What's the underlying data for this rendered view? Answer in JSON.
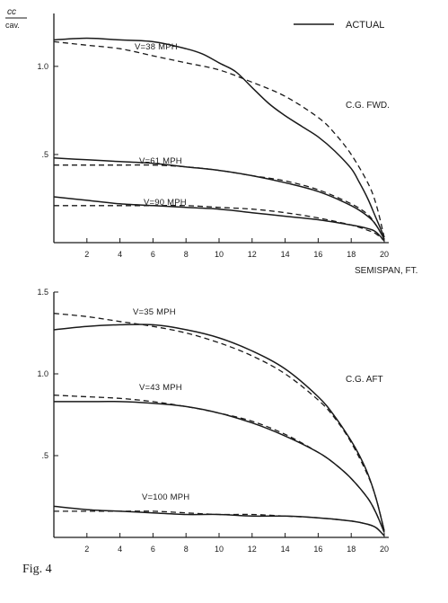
{
  "figure_label": "Fig. 4",
  "legend": {
    "label": "ACTUAL",
    "line_style": "solid",
    "placement": "top-right"
  },
  "colors": {
    "ink": "#1a1a1a",
    "background": "#ffffff"
  },
  "chart_data": [
    {
      "type": "line",
      "title": "C.G. FWD.",
      "ylabel": "cc/cav.",
      "xlabel": "SEMISPAN, FT.",
      "xlim": [
        0,
        20
      ],
      "ylim": [
        0,
        1.3
      ],
      "x_ticks": [
        "2",
        "4",
        "6",
        "8",
        "10",
        "12",
        "14",
        "16",
        "18",
        "20"
      ],
      "y_ticks": [
        ".5",
        "1.0"
      ],
      "grid": false,
      "series": [
        {
          "name": "V=38 MPH",
          "style": "solid",
          "x": [
            0,
            2,
            4,
            6,
            8,
            9,
            10,
            11,
            12,
            13,
            14,
            15,
            16,
            17,
            18,
            18.5,
            19,
            19.5,
            20
          ],
          "y": [
            1.15,
            1.16,
            1.15,
            1.14,
            1.1,
            1.07,
            1.02,
            0.97,
            0.88,
            0.79,
            0.72,
            0.66,
            0.6,
            0.52,
            0.42,
            0.34,
            0.25,
            0.14,
            0.03
          ]
        },
        {
          "name": "V=38 MPH",
          "style": "dashed",
          "x": [
            0,
            2,
            4,
            6,
            8,
            10,
            12,
            14,
            16,
            17,
            18,
            19,
            19.5,
            20
          ],
          "y": [
            1.14,
            1.12,
            1.1,
            1.06,
            1.02,
            0.98,
            0.91,
            0.83,
            0.71,
            0.62,
            0.5,
            0.34,
            0.22,
            0.03
          ]
        },
        {
          "name": "V=61 MPH",
          "style": "solid",
          "x": [
            0,
            2,
            4,
            6,
            8,
            10,
            12,
            14,
            16,
            18,
            19,
            19.5,
            20
          ],
          "y": [
            0.48,
            0.47,
            0.46,
            0.45,
            0.43,
            0.41,
            0.38,
            0.34,
            0.29,
            0.21,
            0.15,
            0.1,
            0.02
          ]
        },
        {
          "name": "V=61 MPH",
          "style": "dashed",
          "x": [
            0,
            2,
            4,
            6,
            8,
            10,
            12,
            14,
            16,
            18,
            19,
            19.5,
            20
          ],
          "y": [
            0.44,
            0.44,
            0.44,
            0.44,
            0.43,
            0.41,
            0.38,
            0.35,
            0.3,
            0.22,
            0.16,
            0.1,
            0.02
          ]
        },
        {
          "name": "V=90 MPH",
          "style": "solid",
          "x": [
            0,
            2,
            4,
            6,
            8,
            10,
            12,
            14,
            16,
            18,
            19,
            19.5,
            20
          ],
          "y": [
            0.26,
            0.24,
            0.22,
            0.21,
            0.2,
            0.19,
            0.17,
            0.15,
            0.13,
            0.1,
            0.08,
            0.06,
            0.01
          ]
        },
        {
          "name": "V=90 MPH",
          "style": "dashed",
          "x": [
            0,
            2,
            4,
            6,
            8,
            10,
            12,
            14,
            16,
            18,
            19,
            19.5,
            20
          ],
          "y": [
            0.21,
            0.21,
            0.21,
            0.21,
            0.21,
            0.2,
            0.19,
            0.17,
            0.14,
            0.1,
            0.07,
            0.05,
            0.01
          ]
        }
      ],
      "curve_labels": [
        "V=38 MPH",
        "V=61 MPH",
        "V=90 MPH"
      ]
    },
    {
      "type": "line",
      "title": "C.G. AFT",
      "ylabel": "",
      "xlabel": "",
      "xlim": [
        0,
        20
      ],
      "ylim": [
        0,
        1.5
      ],
      "x_ticks": [
        "2",
        "4",
        "6",
        "8",
        "10",
        "12",
        "14",
        "16",
        "18",
        "20"
      ],
      "y_ticks": [
        ".5",
        "1.0",
        "1.5"
      ],
      "grid": false,
      "series": [
        {
          "name": "V=35 MPH",
          "style": "solid",
          "x": [
            0,
            2,
            4,
            6,
            8,
            10,
            12,
            14,
            16,
            17,
            18,
            18.5,
            19,
            19.5,
            20
          ],
          "y": [
            1.27,
            1.29,
            1.3,
            1.3,
            1.27,
            1.22,
            1.14,
            1.03,
            0.86,
            0.74,
            0.59,
            0.5,
            0.39,
            0.24,
            0.04
          ]
        },
        {
          "name": "V=35 MPH",
          "style": "dashed",
          "x": [
            0,
            2,
            4,
            6,
            8,
            10,
            12,
            14,
            16,
            17,
            18,
            19,
            19.5,
            20
          ],
          "y": [
            1.37,
            1.35,
            1.32,
            1.29,
            1.25,
            1.19,
            1.11,
            1.0,
            0.84,
            0.73,
            0.58,
            0.38,
            0.24,
            0.04
          ]
        },
        {
          "name": "V=43 MPH",
          "style": "solid",
          "x": [
            0,
            2,
            4,
            6,
            8,
            10,
            12,
            14,
            16,
            17,
            18,
            19,
            19.5,
            20
          ],
          "y": [
            0.83,
            0.83,
            0.83,
            0.82,
            0.8,
            0.76,
            0.7,
            0.62,
            0.52,
            0.45,
            0.36,
            0.24,
            0.15,
            0.03
          ]
        },
        {
          "name": "V=43 MPH",
          "style": "dashed",
          "x": [
            0,
            2,
            4,
            6,
            8,
            10,
            12,
            14,
            16,
            17,
            18,
            19,
            19.5,
            20
          ],
          "y": [
            0.87,
            0.86,
            0.85,
            0.83,
            0.8,
            0.76,
            0.71,
            0.63,
            0.52,
            0.45,
            0.36,
            0.24,
            0.15,
            0.03
          ]
        },
        {
          "name": "V=100 MPH",
          "style": "solid",
          "x": [
            0,
            2,
            4,
            6,
            8,
            10,
            12,
            14,
            16,
            18,
            19,
            19.5,
            20
          ],
          "y": [
            0.19,
            0.17,
            0.16,
            0.15,
            0.14,
            0.14,
            0.13,
            0.13,
            0.12,
            0.1,
            0.08,
            0.06,
            0.01
          ]
        },
        {
          "name": "V=100 MPH",
          "style": "dashed",
          "x": [
            0,
            2,
            4,
            6,
            8,
            10,
            12,
            14,
            16,
            18,
            19,
            19.5,
            20
          ],
          "y": [
            0.16,
            0.16,
            0.16,
            0.16,
            0.15,
            0.14,
            0.14,
            0.13,
            0.12,
            0.1,
            0.08,
            0.06,
            0.01
          ]
        }
      ],
      "curve_labels": [
        "V=35 MPH",
        "V=43 MPH",
        "V=100 MPH"
      ]
    }
  ]
}
